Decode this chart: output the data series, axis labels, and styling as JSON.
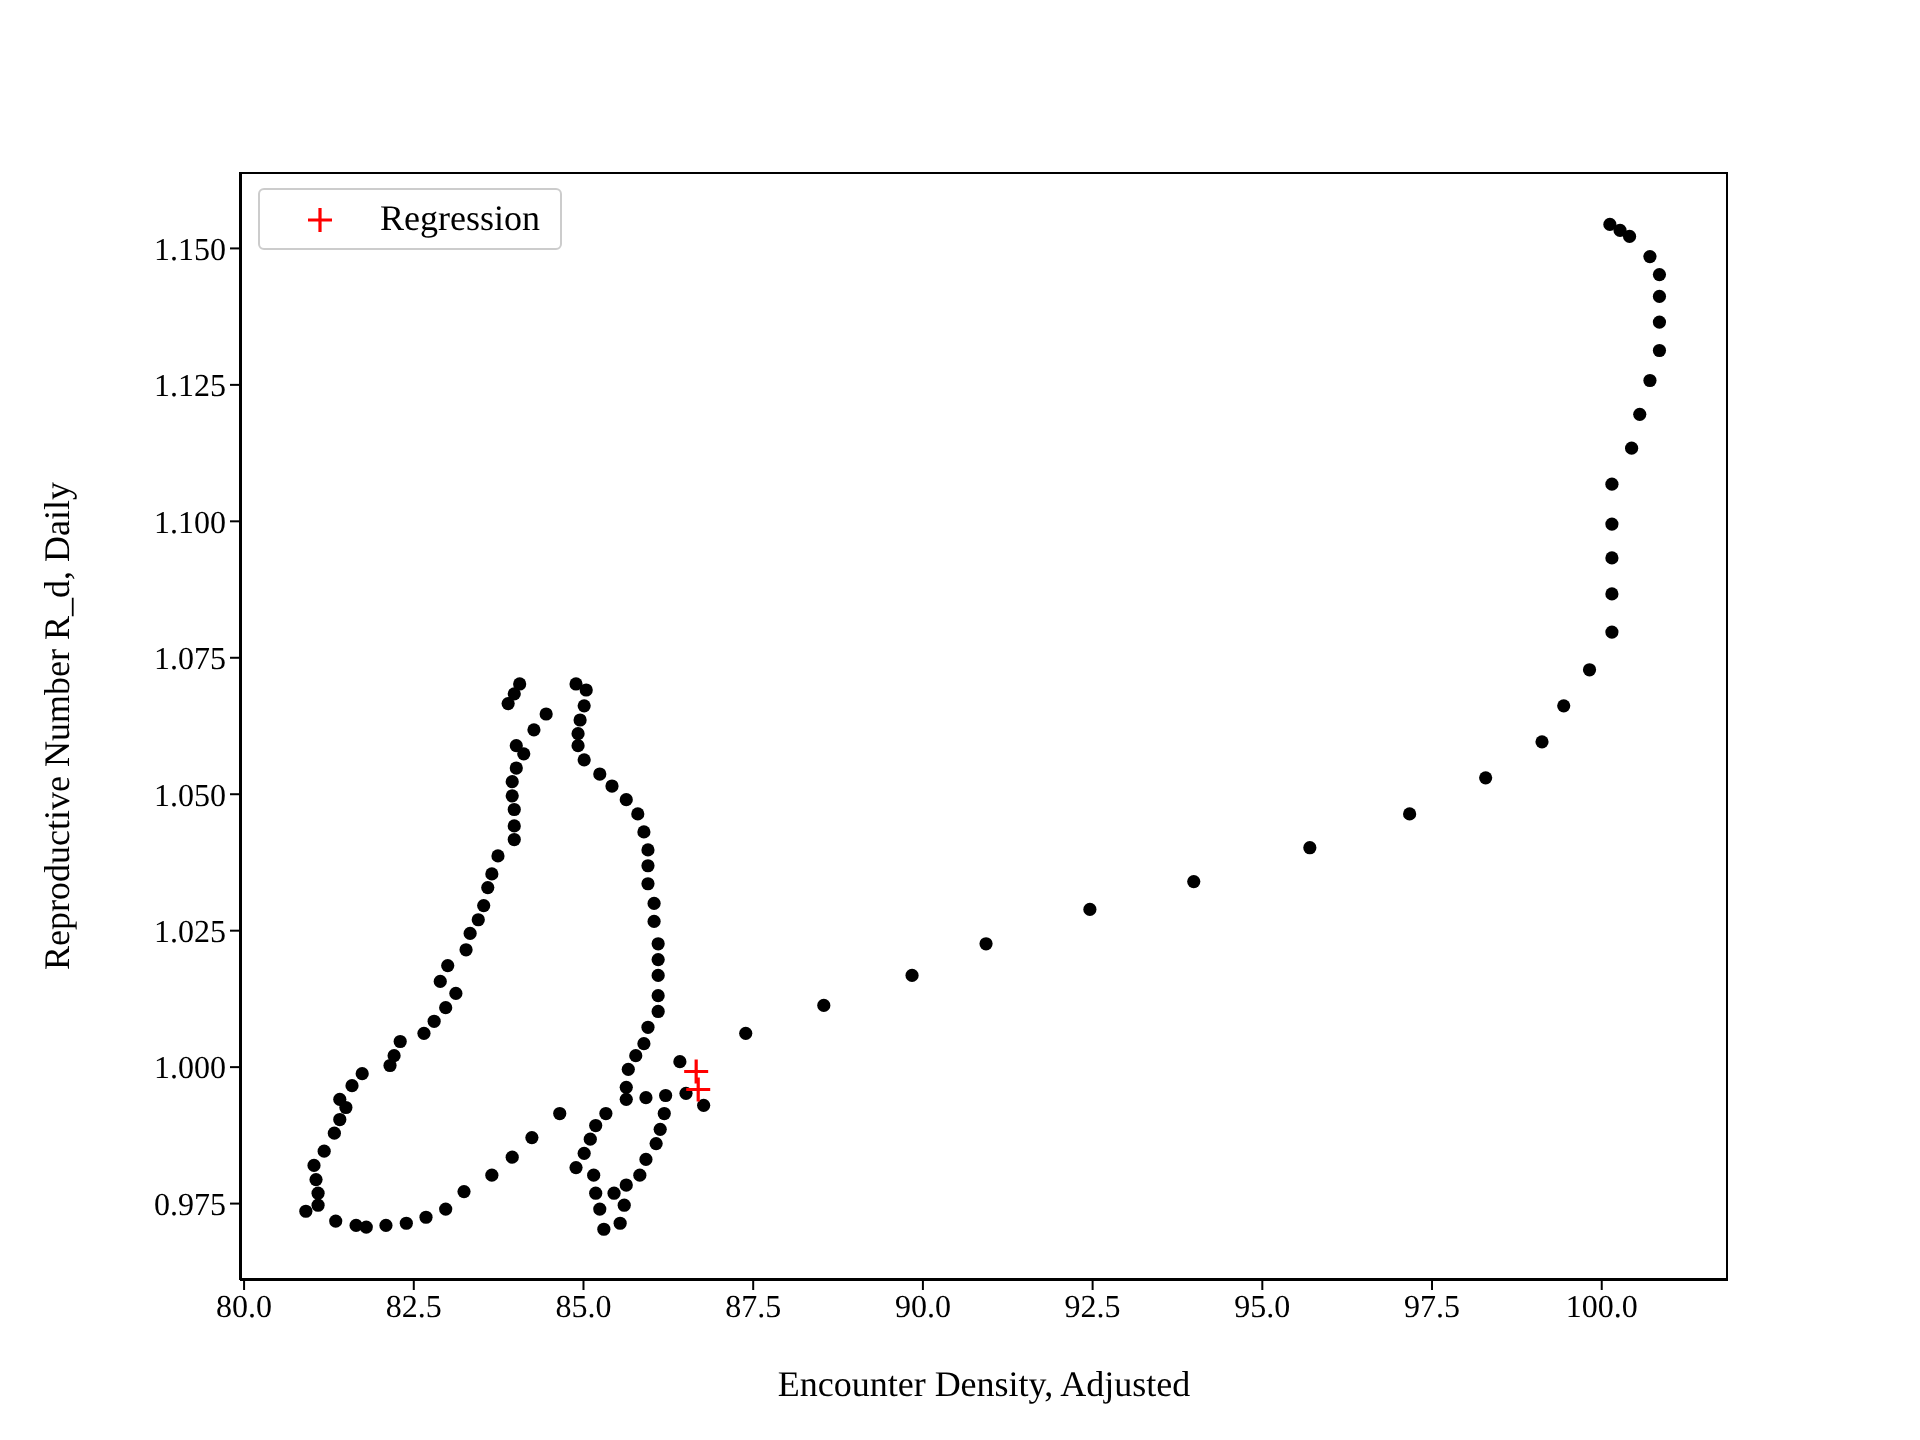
{
  "chart_data": {
    "type": "scatter",
    "xlabel": "Encounter Density, Adjusted",
    "ylabel": "Reproductive Number R_d, Daily",
    "xlim": [
      79.94,
      101.86
    ],
    "ylim": [
      0.961,
      1.164
    ],
    "xticks": [
      {
        "value": 80,
        "label": "80.0"
      },
      {
        "value": 82.5,
        "label": "82.5"
      },
      {
        "value": 85,
        "label": "85.0"
      },
      {
        "value": 87.5,
        "label": "87.5"
      },
      {
        "value": 90,
        "label": "90.0"
      },
      {
        "value": 92.5,
        "label": "92.5"
      },
      {
        "value": 95,
        "label": "95.0"
      },
      {
        "value": 97.5,
        "label": "97.5"
      },
      {
        "value": 100,
        "label": "100.0"
      }
    ],
    "yticks": [
      {
        "value": 0.975,
        "label": "0.975"
      },
      {
        "value": 1,
        "label": "1.000"
      },
      {
        "value": 1.025,
        "label": "1.025"
      },
      {
        "value": 1.05,
        "label": "1.050"
      },
      {
        "value": 1.075,
        "label": "1.075"
      },
      {
        "value": 1.1,
        "label": "1.100"
      },
      {
        "value": 1.125,
        "label": "1.125"
      },
      {
        "value": 1.15,
        "label": "1.150"
      }
    ],
    "grid": false,
    "legend": "top left",
    "series": [
      {
        "color": "#000000",
        "marker": "circle",
        "x": [
          100.12,
          100.27,
          100.41,
          100.71,
          100.85,
          100.85,
          100.85,
          100.85,
          100.71,
          100.56,
          100.44,
          100.15,
          100.15,
          100.15,
          100.15,
          100.15,
          99.82,
          99.44,
          99.12,
          98.29,
          97.17,
          95.7,
          93.99,
          92.46,
          90.93,
          89.84,
          88.54,
          87.39,
          86.42,
          83.27,
          83.0,
          82.89,
          83.12,
          82.97,
          82.8,
          82.65,
          82.3,
          82.21,
          82.15,
          81.74,
          81.59,
          81.41,
          81.5,
          81.41,
          81.33,
          81.18,
          81.03,
          81.06,
          81.09,
          81.09,
          80.91,
          81.35,
          81.65,
          81.8,
          82.09,
          82.39,
          82.68,
          82.97,
          83.24,
          83.65,
          83.95,
          84.24,
          84.65,
          84.06,
          83.98,
          83.89,
          84.45,
          84.27,
          84.01,
          84.12,
          84.01,
          83.95,
          83.95,
          83.98,
          83.98,
          83.98,
          83.74,
          83.65,
          83.59,
          83.53,
          83.45,
          83.33,
          84.89,
          85.04,
          85.01,
          84.95,
          84.92,
          84.92,
          85.01,
          85.24,
          85.42,
          85.63,
          85.8,
          85.89,
          85.95,
          85.95,
          85.95,
          86.04,
          86.04,
          86.1,
          86.1,
          86.1,
          86.1,
          86.1,
          85.95,
          85.89,
          85.77,
          85.66,
          85.63,
          85.63,
          85.33,
          85.18,
          85.1,
          85.01,
          84.89,
          85.15,
          85.18,
          85.24,
          85.3,
          85.54,
          85.6,
          85.45,
          85.63,
          85.83,
          85.92,
          86.07,
          86.13,
          86.19,
          85.92,
          86.21,
          86.51,
          86.77
        ],
        "values": [
          1.1544,
          1.1533,
          1.1522,
          1.1485,
          1.1452,
          1.1412,
          1.1365,
          1.1313,
          1.1258,
          1.1196,
          1.1134,
          1.1068,
          1.0995,
          1.0933,
          1.0867,
          1.0797,
          1.0728,
          1.0662,
          1.0596,
          1.053,
          1.0464,
          1.0402,
          1.034,
          1.0289,
          1.0226,
          1.0168,
          1.0113,
          1.0062,
          1.001,
          1.0215,
          1.0186,
          1.0157,
          1.0135,
          1.0109,
          1.0084,
          1.0062,
          1.0047,
          1.0021,
          1.0003,
          0.9988,
          0.9966,
          0.9941,
          0.9926,
          0.9904,
          0.9879,
          0.9846,
          0.982,
          0.9794,
          0.9769,
          0.9747,
          0.9736,
          0.9718,
          0.971,
          0.9707,
          0.971,
          0.9714,
          0.9725,
          0.974,
          0.9772,
          0.9802,
          0.9835,
          0.9871,
          0.9915,
          1.0702,
          1.0684,
          1.0666,
          1.0647,
          1.0618,
          1.0589,
          1.0574,
          1.0548,
          1.0523,
          1.0497,
          1.0472,
          1.0442,
          1.0417,
          1.0387,
          1.0354,
          1.0329,
          1.0296,
          1.027,
          1.0245,
          1.0702,
          1.0691,
          1.0662,
          1.0636,
          1.0611,
          1.0589,
          1.0563,
          1.0537,
          1.0515,
          1.049,
          1.0464,
          1.0431,
          1.0398,
          1.0369,
          1.0336,
          1.03,
          1.0267,
          1.0226,
          1.0197,
          1.0168,
          1.0131,
          1.0102,
          1.0073,
          1.0043,
          1.0021,
          0.9996,
          0.9963,
          0.9941,
          0.9915,
          0.9893,
          0.9868,
          0.9842,
          0.9816,
          0.9802,
          0.9769,
          0.974,
          0.9703,
          0.9714,
          0.9747,
          0.9769,
          0.9784,
          0.9802,
          0.9831,
          0.986,
          0.9886,
          0.9915,
          0.9944,
          0.9948,
          0.9952,
          0.993
        ]
      },
      {
        "name": "Regression",
        "color": "#ff0000",
        "marker": "cross",
        "x": [
          86.66,
          86.69
        ],
        "values": [
          0.9992,
          0.9959
        ]
      }
    ]
  }
}
